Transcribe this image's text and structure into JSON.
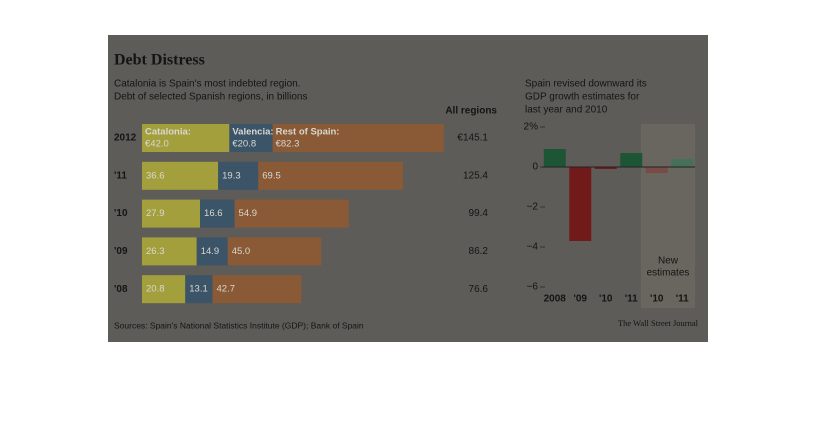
{
  "chart_data": [
    {
      "type": "stacked-bar-h",
      "title": "Debt Distress",
      "subtitle": [
        "Catalonia is Spain's most indebted region.",
        "Debt of selected Spanish regions, in billions"
      ],
      "totals_header": "All regions",
      "categories": [
        "2012",
        "'11",
        "'10",
        "'09",
        "'08"
      ],
      "series": [
        {
          "name": "Catalonia:",
          "color": "#a39f3c",
          "values": [
            42.0,
            36.6,
            27.9,
            26.3,
            20.8
          ],
          "value_labels": [
            "€42.0",
            "36.6",
            "27.9",
            "26.3",
            "20.8"
          ]
        },
        {
          "name": "Valencia:",
          "color": "#3c5468",
          "values": [
            20.8,
            19.3,
            16.6,
            14.9,
            13.1
          ],
          "value_labels": [
            "€20.8",
            "19.3",
            "16.6",
            "14.9",
            "13.1"
          ]
        },
        {
          "name": "Rest of Spain:",
          "color": "#8a5935",
          "values": [
            82.3,
            69.5,
            54.9,
            45.0,
            42.7
          ],
          "value_labels": [
            "€82.3",
            "69.5",
            "54.9",
            "45.0",
            "42.7"
          ]
        }
      ],
      "totals": [
        145.1,
        125.4,
        99.4,
        86.2,
        76.6
      ],
      "totals_labels": [
        "€145.1",
        "125.4",
        "99.4",
        "86.2",
        "76.6"
      ]
    },
    {
      "type": "bar",
      "title": [
        "Spain revised downward its",
        "GDP growth estimates for",
        "last year and 2010"
      ],
      "categories": [
        "2008",
        "'09",
        "'10",
        "'11",
        "'10",
        "'11"
      ],
      "values": [
        0.9,
        -3.7,
        -0.1,
        0.7,
        -0.3,
        0.4
      ],
      "colors": [
        "#1d5535",
        "#701a1a",
        "#701a1a",
        "#1d5535",
        "#7a4a48",
        "#46705a"
      ],
      "ylim": [
        2,
        -6.5
      ],
      "yticks": [
        {
          "value": 2,
          "label": "2%"
        },
        0,
        {
          "value": -2,
          "label": "−2"
        },
        {
          "value": -4,
          "label": "−4"
        },
        {
          "value": -6,
          "label": "−6"
        }
      ],
      "annotation": [
        "New",
        "estimates"
      ]
    }
  ],
  "source": "Sources: Spain's National Statistics Institute (GDP); Bank of Spain",
  "credit": "The Wall Street Journal"
}
